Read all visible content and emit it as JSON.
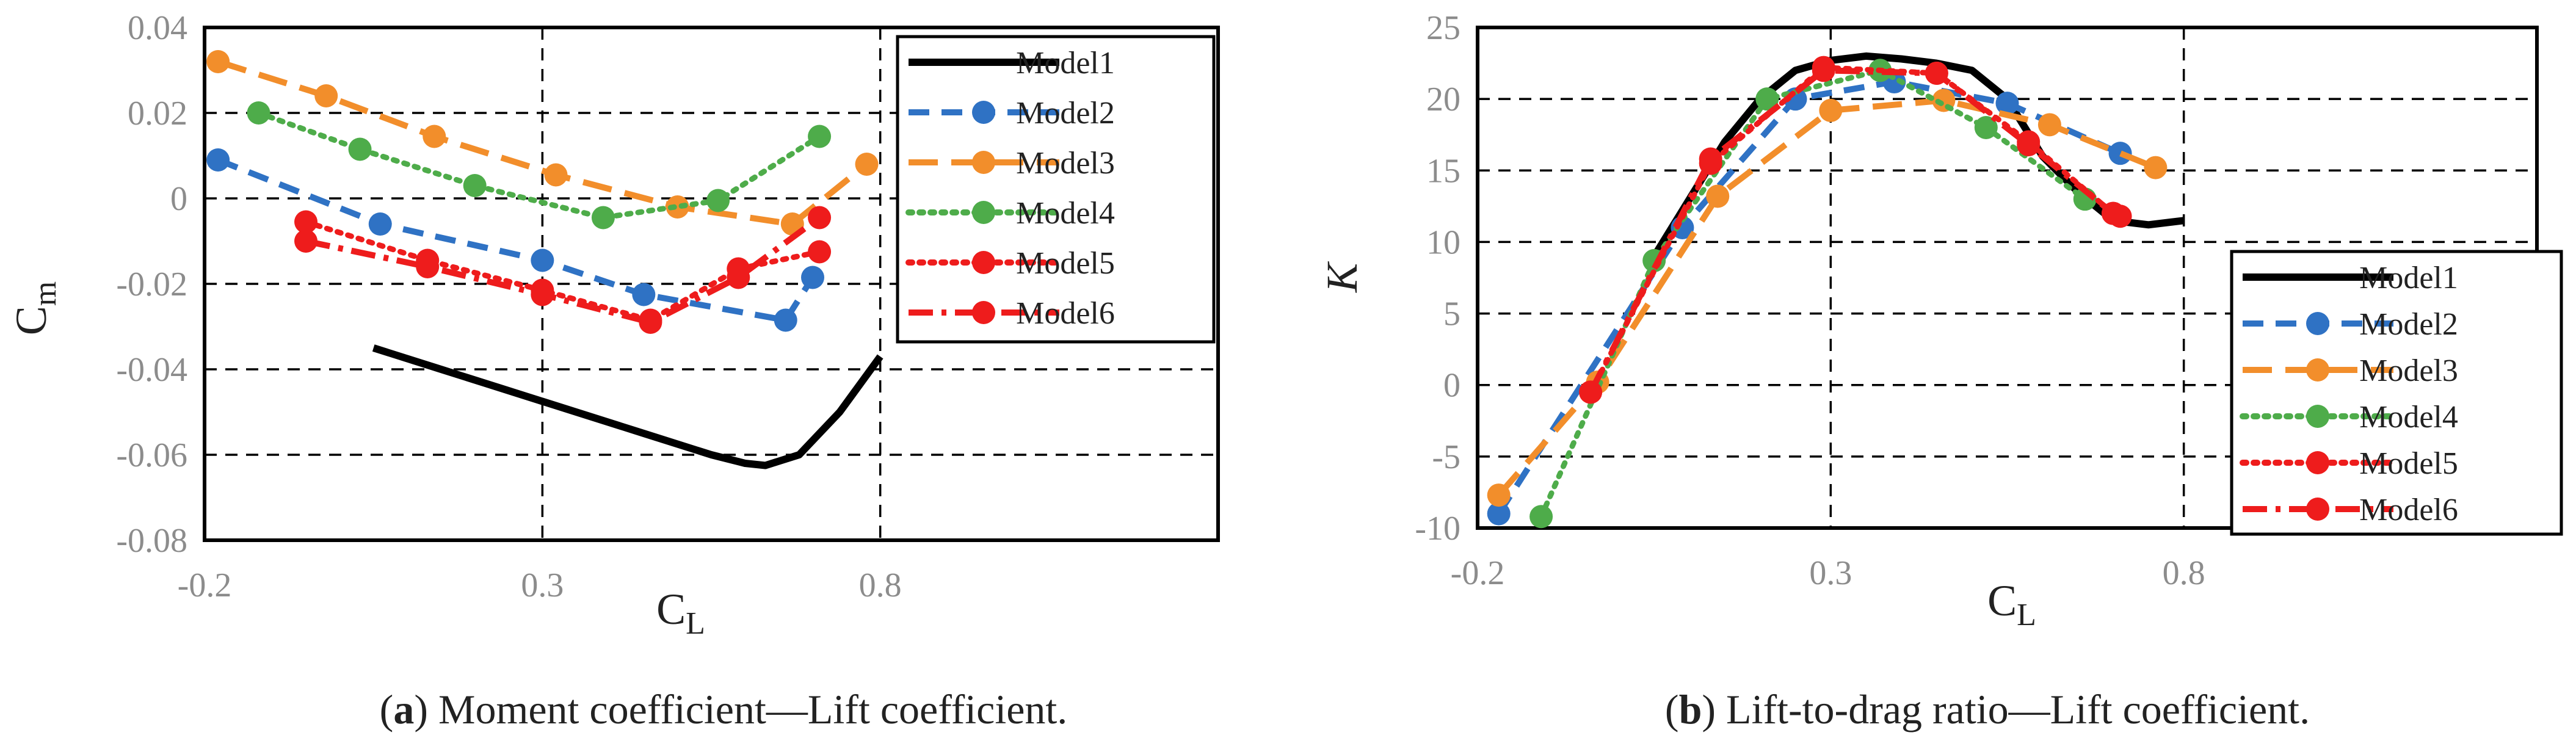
{
  "colors": {
    "model1": "#000000",
    "model2": "#2f72c4",
    "model3": "#f28e2b",
    "model4": "#4eac4a",
    "model5": "#ee1c1c",
    "model6": "#ee1c1c",
    "grid": "#000000",
    "tick": "#8c8c8c"
  },
  "panels": [
    {
      "caption_letter": "a",
      "caption_text": "Moment coefficient—Lift coefficient."
    },
    {
      "caption_letter": "b",
      "caption_text": "Lift-to-drag ratio—Lift coefficient."
    }
  ],
  "chart_data": [
    {
      "type": "line",
      "title": "",
      "xlabel": "C",
      "xlabel_sub": "L",
      "ylabel": "C",
      "ylabel_sub": "m",
      "xlim": [
        -0.2,
        1.3
      ],
      "ylim": [
        -0.08,
        0.04
      ],
      "xticks": [
        -0.2,
        0.3,
        0.8
      ],
      "xtick_labels": [
        "-0.2",
        "0.3",
        "0.8"
      ],
      "yticks": [
        0.04,
        0.02,
        0,
        -0.02,
        -0.04,
        -0.06,
        -0.08
      ],
      "ytick_labels": [
        "0.04",
        "0.02",
        "0",
        "-0.02",
        "-0.04",
        "-0.06",
        "-0.08"
      ],
      "xgrid": [
        0.3,
        0.8
      ],
      "ygrid": [
        0.02,
        0,
        -0.02,
        -0.04,
        -0.06
      ],
      "legend": "top-right",
      "series": [
        {
          "name": "Model1",
          "style": "solid",
          "color": "#000000",
          "markers": false,
          "x": [
            0.05,
            0.15,
            0.25,
            0.35,
            0.45,
            0.55,
            0.6,
            0.63,
            0.68,
            0.74,
            0.8
          ],
          "y": [
            -0.035,
            -0.04,
            -0.045,
            -0.05,
            -0.055,
            -0.06,
            -0.062,
            -0.0625,
            -0.06,
            -0.05,
            -0.037
          ]
        },
        {
          "name": "Model2",
          "style": "dash",
          "color": "#2f72c4",
          "markers": true,
          "x": [
            -0.18,
            0.06,
            0.3,
            0.45,
            0.66,
            0.7
          ],
          "y": [
            0.009,
            -0.006,
            -0.0145,
            -0.0225,
            -0.0285,
            -0.0185
          ]
        },
        {
          "name": "Model3",
          "style": "longdash",
          "color": "#f28e2b",
          "markers": true,
          "x": [
            -0.18,
            -0.02,
            0.14,
            0.32,
            0.5,
            0.67,
            0.78
          ],
          "y": [
            0.032,
            0.024,
            0.0145,
            0.0055,
            -0.002,
            -0.006,
            0.008
          ]
        },
        {
          "name": "Model4",
          "style": "dot",
          "color": "#4eac4a",
          "markers": true,
          "x": [
            -0.12,
            0.03,
            0.2,
            0.39,
            0.56,
            0.71
          ],
          "y": [
            0.02,
            0.0115,
            0.003,
            -0.0045,
            -0.0005,
            0.0145
          ]
        },
        {
          "name": "Model5",
          "style": "dot",
          "color": "#ee1c1c",
          "markers": true,
          "x": [
            -0.05,
            0.13,
            0.3,
            0.46,
            0.59,
            0.71
          ],
          "y": [
            -0.0055,
            -0.0145,
            -0.0215,
            -0.0285,
            -0.0165,
            -0.0125
          ]
        },
        {
          "name": "Model6",
          "style": "dashdot",
          "color": "#ee1c1c",
          "markers": true,
          "x": [
            -0.05,
            0.13,
            0.3,
            0.46,
            0.59,
            0.71
          ],
          "y": [
            -0.01,
            -0.016,
            -0.0225,
            -0.029,
            -0.0185,
            -0.0045
          ]
        }
      ]
    },
    {
      "type": "line",
      "title": "",
      "xlabel": "C",
      "xlabel_sub": "L",
      "ylabel": "K",
      "xlim": [
        -0.2,
        1.3
      ],
      "ylim": [
        -10,
        25
      ],
      "xticks": [
        -0.2,
        0.3,
        0.8
      ],
      "xtick_labels": [
        "-0.2",
        "0.3",
        "0.8"
      ],
      "yticks": [
        25,
        20,
        15,
        10,
        5,
        0,
        -5,
        -10
      ],
      "ytick_labels": [
        "25",
        "20",
        "15",
        "10",
        "5",
        "0",
        "-5",
        "-10"
      ],
      "xgrid": [
        0.3,
        0.8
      ],
      "ygrid": [
        20,
        15,
        10,
        5,
        0,
        -5
      ],
      "legend": "bottom-right",
      "series": [
        {
          "name": "Model1",
          "style": "solid",
          "color": "#000000",
          "markers": false,
          "x": [
            0.05,
            0.1,
            0.15,
            0.2,
            0.25,
            0.3,
            0.35,
            0.4,
            0.45,
            0.5,
            0.55,
            0.6,
            0.65,
            0.7,
            0.75,
            0.8
          ],
          "y": [
            9.0,
            13.0,
            17.0,
            20.0,
            22.0,
            22.7,
            23.0,
            22.8,
            22.5,
            22.0,
            20.0,
            16.0,
            13.5,
            11.5,
            11.2,
            11.5
          ]
        },
        {
          "name": "Model2",
          "style": "dash",
          "color": "#2f72c4",
          "markers": true,
          "x": [
            -0.17,
            0.09,
            0.25,
            0.39,
            0.55,
            0.71
          ],
          "y": [
            -9.0,
            11.0,
            20.0,
            21.2,
            19.7,
            16.2
          ]
        },
        {
          "name": "Model3",
          "style": "longdash",
          "color": "#f28e2b",
          "markers": true,
          "x": [
            -0.17,
            -0.03,
            0.14,
            0.3,
            0.46,
            0.61,
            0.76
          ],
          "y": [
            -7.7,
            0.2,
            13.2,
            19.2,
            19.9,
            18.2,
            15.2
          ]
        },
        {
          "name": "Model4",
          "style": "dot",
          "color": "#4eac4a",
          "markers": true,
          "x": [
            -0.11,
            0.05,
            0.21,
            0.37,
            0.52,
            0.66
          ],
          "y": [
            -9.2,
            8.7,
            20.0,
            22.0,
            18.0,
            13.0
          ]
        },
        {
          "name": "Model5",
          "style": "dot",
          "color": "#ee1c1c",
          "markers": true,
          "x": [
            -0.04,
            0.13,
            0.29,
            0.45,
            0.58,
            0.7,
            0.71
          ],
          "y": [
            -0.5,
            15.5,
            22.2,
            21.8,
            17.0,
            12.0,
            11.8
          ]
        },
        {
          "name": "Model6",
          "style": "dashdot",
          "color": "#ee1c1c",
          "markers": true,
          "x": [
            -0.04,
            0.13,
            0.29,
            0.45,
            0.58,
            0.7
          ],
          "y": [
            -0.5,
            15.8,
            22.0,
            21.8,
            16.8,
            12.0
          ]
        }
      ]
    }
  ]
}
